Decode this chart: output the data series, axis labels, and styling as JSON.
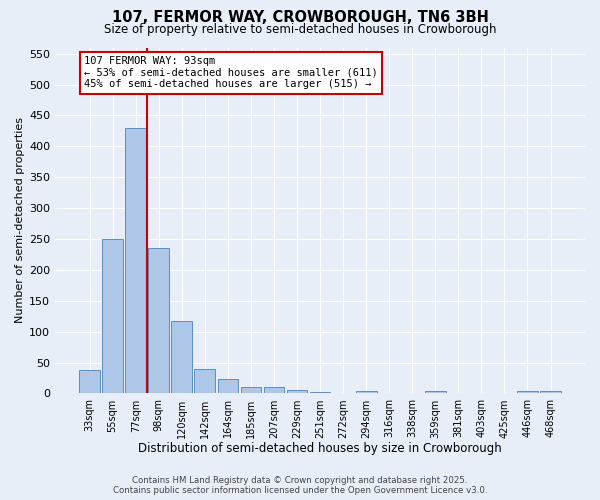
{
  "title": "107, FERMOR WAY, CROWBOROUGH, TN6 3BH",
  "subtitle": "Size of property relative to semi-detached houses in Crowborough",
  "xlabel": "Distribution of semi-detached houses by size in Crowborough",
  "ylabel": "Number of semi-detached properties",
  "footer_line1": "Contains HM Land Registry data © Crown copyright and database right 2025.",
  "footer_line2": "Contains public sector information licensed under the Open Government Licence v3.0.",
  "categories": [
    "33sqm",
    "55sqm",
    "77sqm",
    "98sqm",
    "120sqm",
    "142sqm",
    "164sqm",
    "185sqm",
    "207sqm",
    "229sqm",
    "251sqm",
    "272sqm",
    "294sqm",
    "316sqm",
    "338sqm",
    "359sqm",
    "381sqm",
    "403sqm",
    "425sqm",
    "446sqm",
    "468sqm"
  ],
  "values": [
    38,
    250,
    430,
    236,
    118,
    40,
    24,
    10,
    10,
    5,
    2,
    0,
    4,
    0,
    0,
    4,
    0,
    0,
    0,
    4,
    4
  ],
  "bar_color": "#aec6e8",
  "bar_edge_color": "#5a8fc2",
  "background_color": "#e8eef8",
  "grid_color": "#ffffff",
  "vline_x": 3,
  "vline_color": "#cc0000",
  "annotation_text": "107 FERMOR WAY: 93sqm\n← 53% of semi-detached houses are smaller (611)\n45% of semi-detached houses are larger (515) →",
  "annotation_box_color": "#ffffff",
  "annotation_box_edge_color": "#cc0000",
  "ylim": [
    0,
    560
  ],
  "yticks": [
    0,
    50,
    100,
    150,
    200,
    250,
    300,
    350,
    400,
    450,
    500,
    550
  ]
}
